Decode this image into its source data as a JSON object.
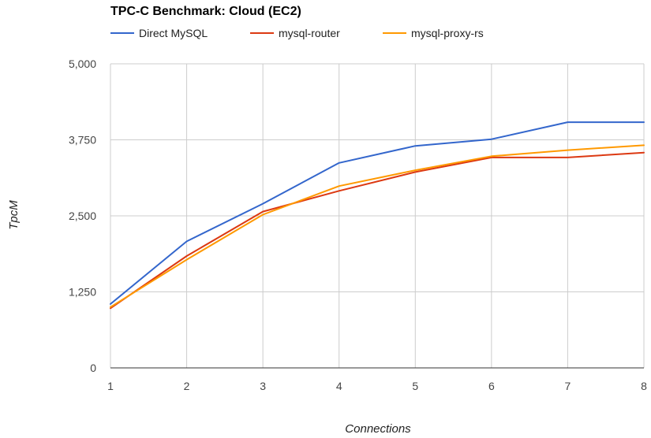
{
  "chart_data": {
    "type": "line",
    "title": "TPC-C Benchmark: Cloud (EC2)",
    "xlabel": "Connections",
    "ylabel": "TpcM",
    "x": [
      1,
      2,
      3,
      4,
      5,
      6,
      7,
      8
    ],
    "xlim": [
      1,
      8
    ],
    "ylim": [
      0,
      5000
    ],
    "y_ticks": [
      0,
      1250,
      2500,
      3750,
      5000
    ],
    "y_tick_labels": [
      "0",
      "1,250",
      "2,500",
      "3,750",
      "5,000"
    ],
    "x_tick_labels": [
      "1",
      "2",
      "3",
      "4",
      "5",
      "6",
      "7",
      "8"
    ],
    "grid": true,
    "legend_position": "top",
    "series": [
      {
        "name": "Direct MySQL",
        "color": "#3366cc",
        "values": [
          1050,
          2080,
          2700,
          3370,
          3650,
          3760,
          4040,
          4040
        ]
      },
      {
        "name": "mysql-router",
        "color": "#dc3912",
        "values": [
          980,
          1840,
          2570,
          2910,
          3220,
          3460,
          3460,
          3540
        ]
      },
      {
        "name": "mysql-proxy-rs",
        "color": "#ff9900",
        "values": [
          1000,
          1780,
          2520,
          2990,
          3250,
          3480,
          3580,
          3660
        ]
      }
    ]
  }
}
